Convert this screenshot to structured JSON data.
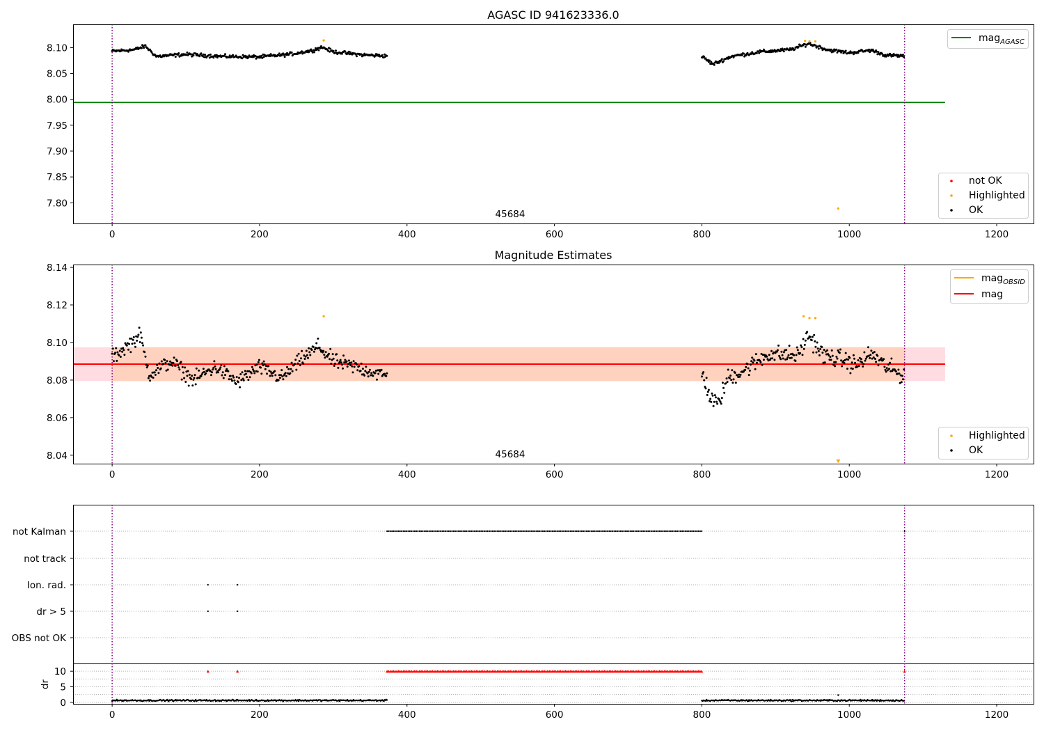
{
  "chart_data": [
    {
      "type": "scatter",
      "title": "AGASC ID 941623336.0",
      "xlim": [
        -53,
        1250
      ],
      "ylim": [
        7.76,
        8.145
      ],
      "xticks": [
        0,
        200,
        400,
        600,
        800,
        1000,
        1200
      ],
      "yticks": [
        7.8,
        7.85,
        7.9,
        7.95,
        8.0,
        8.05,
        8.1
      ],
      "grid": false,
      "reference_line": {
        "label": "mag_AGASC",
        "value": 7.994,
        "x_range": [
          -53,
          1130
        ],
        "color": "#008000"
      },
      "vlines_x": [
        0,
        1075
      ],
      "annotation": {
        "text": "45684",
        "x": 537,
        "y": 7.775
      },
      "legend_lines": [
        {
          "label_main": "mag",
          "label_sub": "AGASC",
          "color": "#008000"
        }
      ],
      "legend_points": [
        {
          "label": "not OK",
          "color": "#ff0000"
        },
        {
          "label": "Highlighted",
          "color": "#ffa500"
        },
        {
          "label": "OK",
          "color": "#000000"
        }
      ],
      "series": [
        {
          "name": "OK",
          "color": "#000000",
          "segments": [
            {
              "x_start": 0,
              "x_end": 373,
              "anchors": [
                [
                  0,
                  8.093
                ],
                [
                  30,
                  8.096
                ],
                [
                  45,
                  8.103
                ],
                [
                  60,
                  8.083
                ],
                [
                  100,
                  8.087
                ],
                [
                  150,
                  8.083
                ],
                [
                  200,
                  8.082
                ],
                [
                  240,
                  8.087
                ],
                [
                  270,
                  8.094
                ],
                [
                  285,
                  8.101
                ],
                [
                  300,
                  8.092
                ],
                [
                  340,
                  8.086
                ],
                [
                  373,
                  8.084
                ]
              ],
              "jitter": 0.005
            },
            {
              "x_start": 800,
              "x_end": 1075,
              "anchors": [
                [
                  800,
                  8.083
                ],
                [
                  815,
                  8.068
                ],
                [
                  840,
                  8.083
                ],
                [
                  880,
                  8.092
                ],
                [
                  920,
                  8.096
                ],
                [
                  945,
                  8.108
                ],
                [
                  970,
                  8.096
                ],
                [
                  1000,
                  8.09
                ],
                [
                  1030,
                  8.095
                ],
                [
                  1050,
                  8.085
                ],
                [
                  1075,
                  8.084
                ]
              ],
              "jitter": 0.005
            }
          ]
        },
        {
          "name": "Highlighted",
          "color": "#ffa500",
          "points": [
            [
              287,
              8.114
            ],
            [
              940,
              8.113
            ],
            [
              946,
              8.112
            ],
            [
              954,
              8.112
            ],
            [
              985,
              7.789
            ]
          ]
        }
      ]
    },
    {
      "type": "scatter",
      "title": "Magnitude Estimates",
      "xlim": [
        -53,
        1250
      ],
      "ylim": [
        8.0355,
        8.1415
      ],
      "xticks": [
        0,
        200,
        400,
        600,
        800,
        1000,
        1200
      ],
      "yticks": [
        8.04,
        8.06,
        8.08,
        8.1,
        8.12,
        8.14
      ],
      "grid": false,
      "bands": [
        {
          "y0": 8.0795,
          "y1": 8.0975,
          "x_range": [
            -53,
            1130
          ],
          "color": "#ffd6dc"
        },
        {
          "y0": 8.0795,
          "y1": 8.0975,
          "x_range": [
            0,
            1075
          ],
          "color": "#ffd0b8"
        }
      ],
      "lines": [
        {
          "label": "mag_OBSID",
          "value": 8.0885,
          "x_range": [
            0,
            1075
          ],
          "color": "#ffa500"
        },
        {
          "label": "mag",
          "value": 8.0885,
          "x_range": [
            -53,
            1130
          ],
          "color": "#ff0000"
        }
      ],
      "vlines_x": [
        0,
        1075
      ],
      "annotation": {
        "text": "45684",
        "x": 537,
        "y": 8.0395
      },
      "legend_lines": [
        {
          "label_main": "mag",
          "label_sub": "OBSID",
          "color": "#ffa500"
        },
        {
          "label_main": "mag",
          "label_sub": "",
          "color": "#ff0000"
        }
      ],
      "legend_points": [
        {
          "label": "Highlighted",
          "color": "#ffa500"
        },
        {
          "label": "OK",
          "color": "#000000"
        }
      ],
      "series": [
        {
          "name": "OK",
          "color": "#000000",
          "segments": [
            {
              "x_start": 0,
              "x_end": 373,
              "anchors": [
                [
                  0,
                  8.092
                ],
                [
                  20,
                  8.098
                ],
                [
                  38,
                  8.104
                ],
                [
                  50,
                  8.083
                ],
                [
                  80,
                  8.09
                ],
                [
                  110,
                  8.08
                ],
                [
                  140,
                  8.087
                ],
                [
                  170,
                  8.079
                ],
                [
                  200,
                  8.087
                ],
                [
                  230,
                  8.081
                ],
                [
                  260,
                  8.092
                ],
                [
                  280,
                  8.098
                ],
                [
                  300,
                  8.09
                ],
                [
                  330,
                  8.087
                ],
                [
                  373,
                  8.082
                ]
              ],
              "jitter": 0.006
            },
            {
              "x_start": 800,
              "x_end": 1075,
              "anchors": [
                [
                  800,
                  8.085
                ],
                [
                  812,
                  8.07
                ],
                [
                  822,
                  8.067
                ],
                [
                  835,
                  8.081
                ],
                [
                  860,
                  8.086
                ],
                [
                  890,
                  8.094
                ],
                [
                  930,
                  8.093
                ],
                [
                  945,
                  8.104
                ],
                [
                  965,
                  8.093
                ],
                [
                  990,
                  8.091
                ],
                [
                  1010,
                  8.088
                ],
                [
                  1030,
                  8.094
                ],
                [
                  1050,
                  8.087
                ],
                [
                  1075,
                  8.082
                ]
              ],
              "jitter": 0.007
            }
          ]
        },
        {
          "name": "Highlighted",
          "color": "#ffa500",
          "points": [
            [
              287,
              8.114
            ],
            [
              938,
              8.114
            ],
            [
              946,
              8.113
            ],
            [
              954,
              8.113
            ],
            [
              985,
              8.037
            ]
          ]
        }
      ]
    },
    {
      "type": "scatter",
      "title": "",
      "xlim": [
        -53,
        1250
      ],
      "xticks": [
        0,
        200,
        400,
        600,
        800,
        1000,
        1200
      ],
      "flag_rows": [
        "not Kalman",
        "not track",
        "Ion. rad.",
        "dr > 5",
        "OBS not OK"
      ],
      "flag_points": {
        "not Kalman": {
          "ranges": [
            [
              373,
              800
            ]
          ],
          "points": [
            1075
          ]
        },
        "not track": {
          "ranges": [],
          "points": []
        },
        "Ion. rad.": {
          "ranges": [],
          "points": [
            130,
            170
          ]
        },
        "dr > 5": {
          "ranges": [],
          "points": [
            130,
            170
          ]
        },
        "OBS not OK": {
          "ranges": [],
          "points": []
        }
      },
      "ylabel": "dr",
      "dr_ylim": [
        -0.5,
        12.5
      ],
      "dr_yticks": [
        0,
        5,
        10
      ],
      "dr_clipped": {
        "color": "#ff0000",
        "value": 10,
        "ranges": [
          [
            373,
            800
          ]
        ],
        "points": [
          130,
          170,
          1075
        ]
      },
      "dr_series": {
        "color": "#000000",
        "segments": [
          {
            "x_start": 0,
            "x_end": 373,
            "base": 0.6,
            "jitter": 0.35
          },
          {
            "x_start": 800,
            "x_end": 1075,
            "base": 0.6,
            "jitter": 0.35
          }
        ],
        "points": [
          [
            985,
            2.3
          ]
        ]
      },
      "vlines_x": [
        0,
        1075
      ]
    }
  ]
}
